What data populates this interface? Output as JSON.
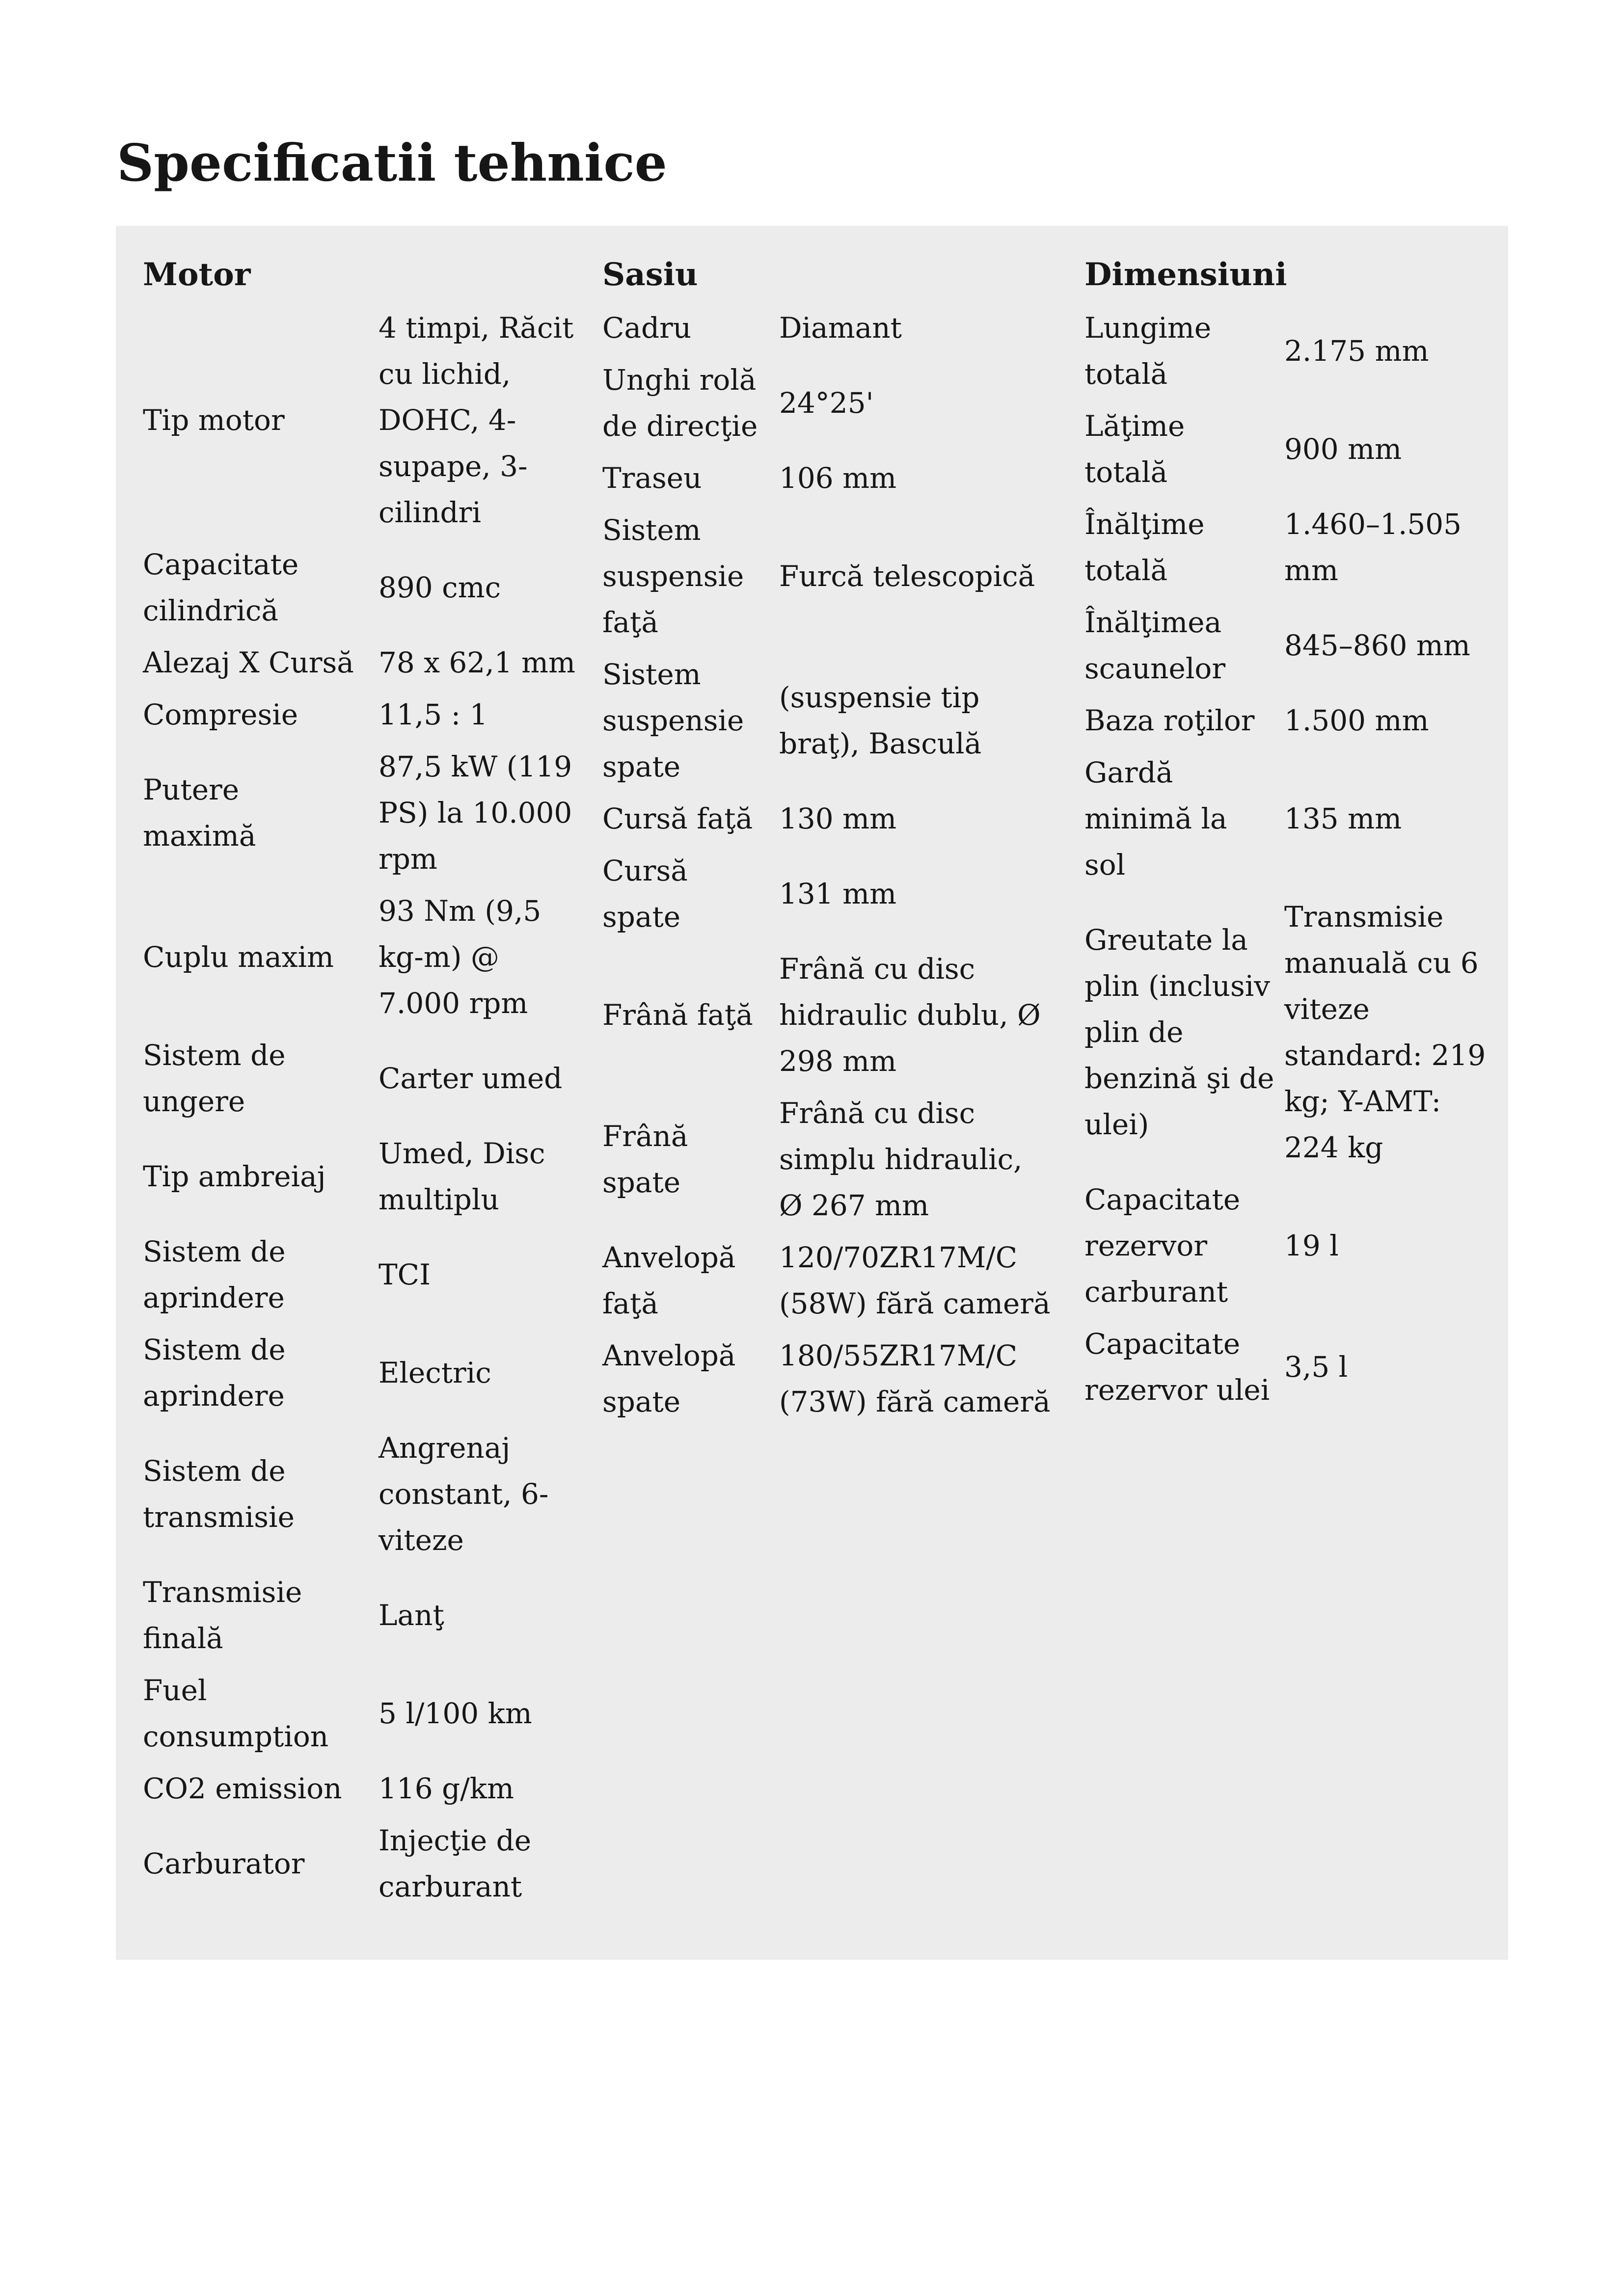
{
  "page_title": "Specificatii tehnice",
  "panel_bg": "#ececec",
  "text_color": "#161616",
  "sections": [
    {
      "title": "Motor",
      "rows": [
        {
          "label": "Tip motor",
          "value": "4 timpi, Răcit\ncu lichid,\nDOHC, 4-\nsupape, 3-\ncilindri"
        },
        {
          "label": "Capacitate\ncilindrică",
          "value": "890 cmc"
        },
        {
          "label": "Alezaj X Cursă",
          "value": "78 x 62,1 mm"
        },
        {
          "label": "Compresie",
          "value": "11,5 : 1"
        },
        {
          "label": "Putere maximă",
          "value": "87,5 kW (119\nPS) la 10.000\nrpm"
        },
        {
          "label": "Cuplu maxim",
          "value": "93 Nm (9,5\nkg-m) @\n7.000 rpm"
        },
        {
          "label": "Sistem de\nungere",
          "value": "Carter umed"
        },
        {
          "label": "Tip ambreiaj",
          "value": "Umed, Disc\nmultiplu"
        },
        {
          "label": "Sistem de\naprindere",
          "value": "TCI"
        },
        {
          "label": "Sistem de\naprindere",
          "value": "Electric"
        },
        {
          "label": "Sistem de\ntransmisie",
          "value": "Angrenaj\nconstant, 6-\nviteze"
        },
        {
          "label": "Transmisie\nfinală",
          "value": "Lanţ"
        },
        {
          "label": "Fuel\nconsumption",
          "value": "5 l/100 km"
        },
        {
          "label": "CO2 emission",
          "value": "116 g/km"
        },
        {
          "label": "Carburator",
          "value": "Injecţie de\ncarburant"
        }
      ]
    },
    {
      "title": "Sasiu",
      "rows": [
        {
          "label": "Cadru",
          "value": "Diamant"
        },
        {
          "label": "Unghi rolă\nde direcţie",
          "value": "24°25'"
        },
        {
          "label": "Traseu",
          "value": "106 mm"
        },
        {
          "label": "Sistem\nsuspensie\nfaţă",
          "value": "Furcă telescopică"
        },
        {
          "label": "Sistem\nsuspensie\nspate",
          "value": "(suspensie tip\nbraţ), Basculă"
        },
        {
          "label": "Cursă faţă",
          "value": "130 mm"
        },
        {
          "label": "Cursă spate",
          "value": "131 mm"
        },
        {
          "label": "Frână faţă",
          "value": "Frână cu disc\nhidraulic dublu, Ø\n298 mm"
        },
        {
          "label": "Frână spate",
          "value": "Frână cu disc\nsimplu hidraulic,\nØ 267 mm"
        },
        {
          "label": "Anvelopă\nfaţă",
          "value": "120/70ZR17M/C\n(58W) fără cameră"
        },
        {
          "label": "Anvelopă\nspate",
          "value": "180/55ZR17M/C\n(73W) fără cameră"
        }
      ]
    },
    {
      "title": "Dimensiuni",
      "rows": [
        {
          "label": "Lungime\ntotală",
          "value": "2.175 mm"
        },
        {
          "label": "Lăţime totală",
          "value": "900 mm"
        },
        {
          "label": "Înălţime\ntotală",
          "value": "1.460–1.505\nmm"
        },
        {
          "label": "Înălţimea\nscaunelor",
          "value": "845–860 mm"
        },
        {
          "label": "Baza roţilor",
          "value": "1.500 mm"
        },
        {
          "label": "Gardă\nminimă la sol",
          "value": "135 mm"
        },
        {
          "label": "Greutate la\nplin (inclusiv\nplin de\nbenzină şi de\nulei)",
          "value": "Transmisie\nmanuală cu 6\nviteze\nstandard: 219\nkg; Y-AMT:\n224 kg"
        },
        {
          "label": "Capacitate\nrezervor\ncarburant",
          "value": "19 l"
        },
        {
          "label": "Capacitate\nrezervor ulei",
          "value": "3,5 l"
        }
      ]
    }
  ]
}
